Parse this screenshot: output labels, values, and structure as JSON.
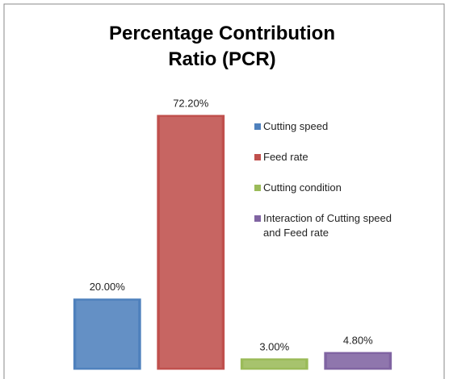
{
  "chart_data": {
    "type": "bar",
    "title": "Percentage Contribution Ratio (PCR)",
    "categories": [
      null
    ],
    "series": [
      {
        "name": "Cutting speed",
        "color": "#4f81bd",
        "values": [
          20.0
        ],
        "value_labels": [
          "20.00%"
        ]
      },
      {
        "name": "Feed rate",
        "color": "#c0504d",
        "values": [
          72.2
        ],
        "value_labels": [
          "72.20%"
        ]
      },
      {
        "name": "Cutting condition",
        "color": "#9bbb59",
        "values": [
          3.0
        ],
        "value_labels": [
          "3.00%"
        ]
      },
      {
        "name": "Interaction of Cutting speed and Feed rate",
        "color": "#8064a2",
        "values": [
          4.8
        ],
        "value_labels": [
          "4.80%"
        ]
      }
    ],
    "ylim": [
      0,
      80
    ],
    "legend": "right"
  }
}
